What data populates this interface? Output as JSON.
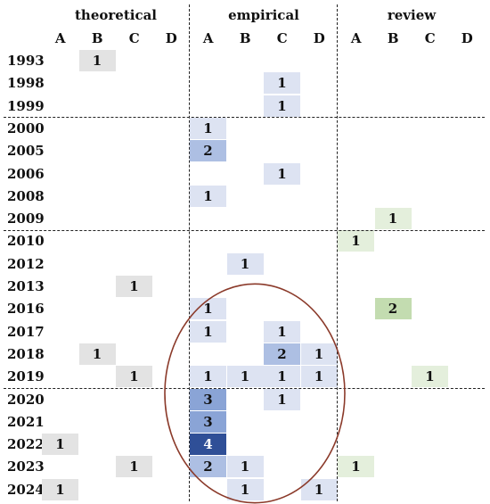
{
  "chart_data": {
    "type": "heatmap",
    "groups": [
      "theoretical",
      "empirical",
      "review"
    ],
    "columns": [
      "A",
      "B",
      "C",
      "D"
    ],
    "years": [
      "1993",
      "1998",
      "1999",
      "2000",
      "2005",
      "2006",
      "2008",
      "2009",
      "2010",
      "2012",
      "2013",
      "2016",
      "2017",
      "2018",
      "2019",
      "2020",
      "2021",
      "2022",
      "2023",
      "2024"
    ],
    "cells": [
      {
        "year": "1993",
        "group": "theoretical",
        "col": "B",
        "value": 1
      },
      {
        "year": "1998",
        "group": "empirical",
        "col": "C",
        "value": 1
      },
      {
        "year": "1999",
        "group": "empirical",
        "col": "C",
        "value": 1
      },
      {
        "year": "2000",
        "group": "empirical",
        "col": "A",
        "value": 1
      },
      {
        "year": "2005",
        "group": "empirical",
        "col": "A",
        "value": 2
      },
      {
        "year": "2006",
        "group": "empirical",
        "col": "C",
        "value": 1
      },
      {
        "year": "2008",
        "group": "empirical",
        "col": "A",
        "value": 1
      },
      {
        "year": "2009",
        "group": "review",
        "col": "B",
        "value": 1
      },
      {
        "year": "2010",
        "group": "review",
        "col": "A",
        "value": 1
      },
      {
        "year": "2012",
        "group": "empirical",
        "col": "B",
        "value": 1
      },
      {
        "year": "2013",
        "group": "theoretical",
        "col": "C",
        "value": 1
      },
      {
        "year": "2016",
        "group": "empirical",
        "col": "A",
        "value": 1
      },
      {
        "year": "2016",
        "group": "review",
        "col": "B",
        "value": 2
      },
      {
        "year": "2017",
        "group": "empirical",
        "col": "A",
        "value": 1
      },
      {
        "year": "2017",
        "group": "empirical",
        "col": "C",
        "value": 1
      },
      {
        "year": "2018",
        "group": "theoretical",
        "col": "B",
        "value": 1
      },
      {
        "year": "2018",
        "group": "empirical",
        "col": "C",
        "value": 2
      },
      {
        "year": "2018",
        "group": "empirical",
        "col": "D",
        "value": 1
      },
      {
        "year": "2019",
        "group": "theoretical",
        "col": "C",
        "value": 1
      },
      {
        "year": "2019",
        "group": "empirical",
        "col": "A",
        "value": 1
      },
      {
        "year": "2019",
        "group": "empirical",
        "col": "B",
        "value": 1
      },
      {
        "year": "2019",
        "group": "empirical",
        "col": "C",
        "value": 1
      },
      {
        "year": "2019",
        "group": "empirical",
        "col": "D",
        "value": 1
      },
      {
        "year": "2019",
        "group": "review",
        "col": "C",
        "value": 1
      },
      {
        "year": "2020",
        "group": "empirical",
        "col": "A",
        "value": 3
      },
      {
        "year": "2020",
        "group": "empirical",
        "col": "C",
        "value": 1
      },
      {
        "year": "2021",
        "group": "empirical",
        "col": "A",
        "value": 3
      },
      {
        "year": "2022",
        "group": "theoretical",
        "col": "A",
        "value": 1
      },
      {
        "year": "2022",
        "group": "empirical",
        "col": "A",
        "value": 4
      },
      {
        "year": "2023",
        "group": "theoretical",
        "col": "C",
        "value": 1
      },
      {
        "year": "2023",
        "group": "empirical",
        "col": "A",
        "value": 2
      },
      {
        "year": "2023",
        "group": "empirical",
        "col": "B",
        "value": 1
      },
      {
        "year": "2023",
        "group": "review",
        "col": "A",
        "value": 1
      },
      {
        "year": "2024",
        "group": "theoretical",
        "col": "A",
        "value": 1
      },
      {
        "year": "2024",
        "group": "empirical",
        "col": "B",
        "value": 1
      },
      {
        "year": "2024",
        "group": "empirical",
        "col": "D",
        "value": 1
      }
    ],
    "colors": {
      "theoretical": {
        "1": "#e3e3e3"
      },
      "empirical": {
        "1": "#dde3f2",
        "2": "#adbfe3",
        "3": "#8aa4d6",
        "4": "#2f4f97"
      },
      "review": {
        "1": "#e4efdc",
        "2": "#c3dcb0"
      }
    },
    "period_separators_after_year": [
      "1999",
      "2009",
      "2019"
    ],
    "highlight": {
      "shape": "ellipse",
      "color": "#8b3a2a",
      "years": [
        "2016",
        "2024"
      ],
      "group": "empirical"
    }
  }
}
